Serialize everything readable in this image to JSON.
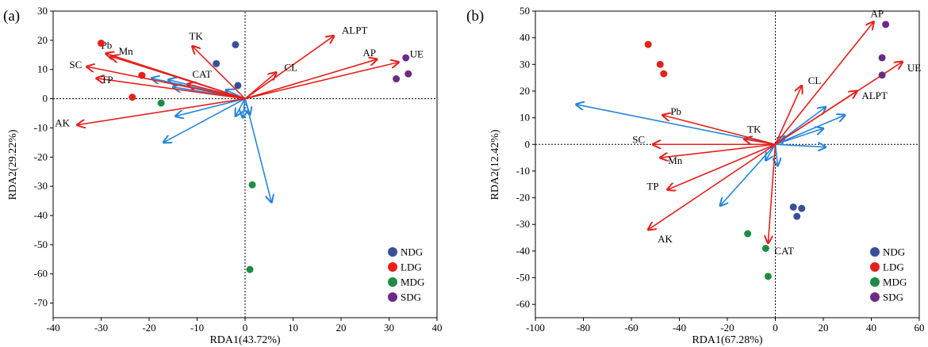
{
  "colors": {
    "NDG": "#3a4f9a",
    "LDG": "#e4201c",
    "MDG": "#1e8c45",
    "SDG": "#6a2a86",
    "env_arrow": "#e4201c",
    "species_arrow": "#2585d9",
    "axis": "#000000",
    "zero_line": "#000000"
  },
  "chart_data": [
    {
      "type": "scatter",
      "panel_label": "(a)",
      "title": "",
      "xlabel": "RDA1(43.72%)",
      "ylabel": "RDA2(29.22%)",
      "xlim": [
        -40,
        40
      ],
      "ylim": [
        -75,
        30
      ],
      "xticks": [
        -40,
        -30,
        -20,
        -10,
        0,
        10,
        20,
        30,
        40
      ],
      "yticks": [
        30,
        20,
        10,
        0,
        -10,
        -20,
        -30,
        -40,
        -50,
        -60,
        -70
      ],
      "legend": {
        "position": "bottom-right",
        "entries": [
          {
            "name": "NDG",
            "color_key": "NDG"
          },
          {
            "name": "LDG",
            "color_key": "LDG"
          },
          {
            "name": "MDG",
            "color_key": "MDG"
          },
          {
            "name": "SDG",
            "color_key": "SDG"
          }
        ]
      },
      "series": [
        {
          "name": "NDG",
          "points": [
            [
              -2,
              18.5
            ],
            [
              -6,
              12
            ],
            [
              -1.5,
              4.5
            ]
          ]
        },
        {
          "name": "LDG",
          "points": [
            [
              -30,
              19
            ],
            [
              -21.5,
              8
            ],
            [
              -23.5,
              0.5
            ]
          ]
        },
        {
          "name": "MDG",
          "points": [
            [
              -17.5,
              -1.5
            ],
            [
              1.5,
              -29.5
            ],
            [
              1,
              -58.5
            ]
          ]
        },
        {
          "name": "SDG",
          "points": [
            [
              33.5,
              14
            ],
            [
              31.5,
              6.8
            ],
            [
              34,
              8.5
            ]
          ]
        }
      ],
      "env_arrows": [
        {
          "label": "ALPT",
          "x": 18.5,
          "y": 21.5
        },
        {
          "label": "TK",
          "x": -11,
          "y": 18
        },
        {
          "label": "Pb",
          "x": -29,
          "y": 15.5
        },
        {
          "label": "Mn",
          "x": -28,
          "y": 14.5
        },
        {
          "label": "SC",
          "x": -33,
          "y": 11
        },
        {
          "label": "TP",
          "x": -31,
          "y": 7
        },
        {
          "label": "CAT",
          "x": -12,
          "y": 5
        },
        {
          "label": "CL",
          "x": 6.5,
          "y": 9
        },
        {
          "label": "AP",
          "x": 27.5,
          "y": 13.5
        },
        {
          "label": "UE",
          "x": 32,
          "y": 12.5
        },
        {
          "label": "AK",
          "x": -35,
          "y": -9
        }
      ],
      "species_arrows": [
        {
          "x": -19.5,
          "y": 7
        },
        {
          "x": -16,
          "y": 6.5
        },
        {
          "x": -15,
          "y": 4
        },
        {
          "x": -14.5,
          "y": -6
        },
        {
          "x": -17,
          "y": -15
        },
        {
          "x": -2,
          "y": -6
        },
        {
          "x": -0.5,
          "y": -6.5
        },
        {
          "x": 1,
          "y": -5.5
        },
        {
          "x": 5.5,
          "y": -35.5
        },
        {
          "x": -4,
          "y": 3
        }
      ]
    },
    {
      "type": "scatter",
      "panel_label": "(b)",
      "title": "",
      "xlabel": "RDA1(67.28%)",
      "ylabel": "RDA2(12.42%)",
      "xlim": [
        -100,
        60
      ],
      "ylim": [
        -65,
        50
      ],
      "xticks": [
        -100,
        -80,
        -60,
        -40,
        -20,
        0,
        20,
        40,
        60
      ],
      "yticks": [
        50,
        40,
        30,
        20,
        10,
        0,
        -10,
        -20,
        -30,
        -40,
        -50,
        -60
      ],
      "legend": {
        "position": "bottom-right",
        "entries": [
          {
            "name": "NDG",
            "color_key": "NDG"
          },
          {
            "name": "LDG",
            "color_key": "LDG"
          },
          {
            "name": "MDG",
            "color_key": "MDG"
          },
          {
            "name": "SDG",
            "color_key": "SDG"
          }
        ]
      },
      "series": [
        {
          "name": "NDG",
          "points": [
            [
              7.5,
              -23.5
            ],
            [
              11,
              -24
            ],
            [
              9,
              -27
            ]
          ]
        },
        {
          "name": "LDG",
          "points": [
            [
              -53,
              37.5
            ],
            [
              -48,
              30
            ],
            [
              -46.5,
              26.5
            ]
          ]
        },
        {
          "name": "MDG",
          "points": [
            [
              -11.5,
              -33.5
            ],
            [
              -4,
              -39
            ],
            [
              -3,
              -49.5
            ]
          ]
        },
        {
          "name": "SDG",
          "points": [
            [
              46,
              45
            ],
            [
              44.5,
              32.5
            ],
            [
              44.5,
              26
            ]
          ]
        }
      ],
      "env_arrows": [
        {
          "label": "AP",
          "x": 41,
          "y": 46
        },
        {
          "label": "CL",
          "x": 11,
          "y": 22
        },
        {
          "label": "UE",
          "x": 53,
          "y": 31
        },
        {
          "label": "ALPT",
          "x": 34,
          "y": 20
        },
        {
          "label": "Pb",
          "x": -47,
          "y": 11
        },
        {
          "label": "TK",
          "x": -13,
          "y": 2
        },
        {
          "label": "SC",
          "x": -51,
          "y": 0
        },
        {
          "label": "Mn",
          "x": -48,
          "y": -5
        },
        {
          "label": "TP",
          "x": -45,
          "y": -17
        },
        {
          "label": "AK",
          "x": -53,
          "y": -32
        },
        {
          "label": "CAT",
          "x": -3,
          "y": -37
        }
      ],
      "species_arrows": [
        {
          "x": -83,
          "y": 15
        },
        {
          "x": 21,
          "y": 14
        },
        {
          "x": 29,
          "y": 11
        },
        {
          "x": 20,
          "y": 6
        },
        {
          "x": 21,
          "y": -1
        },
        {
          "x": -23,
          "y": -23
        },
        {
          "x": -4,
          "y": -6
        },
        {
          "x": 1,
          "y": -8
        },
        {
          "x": 4,
          "y": 3
        }
      ]
    }
  ]
}
